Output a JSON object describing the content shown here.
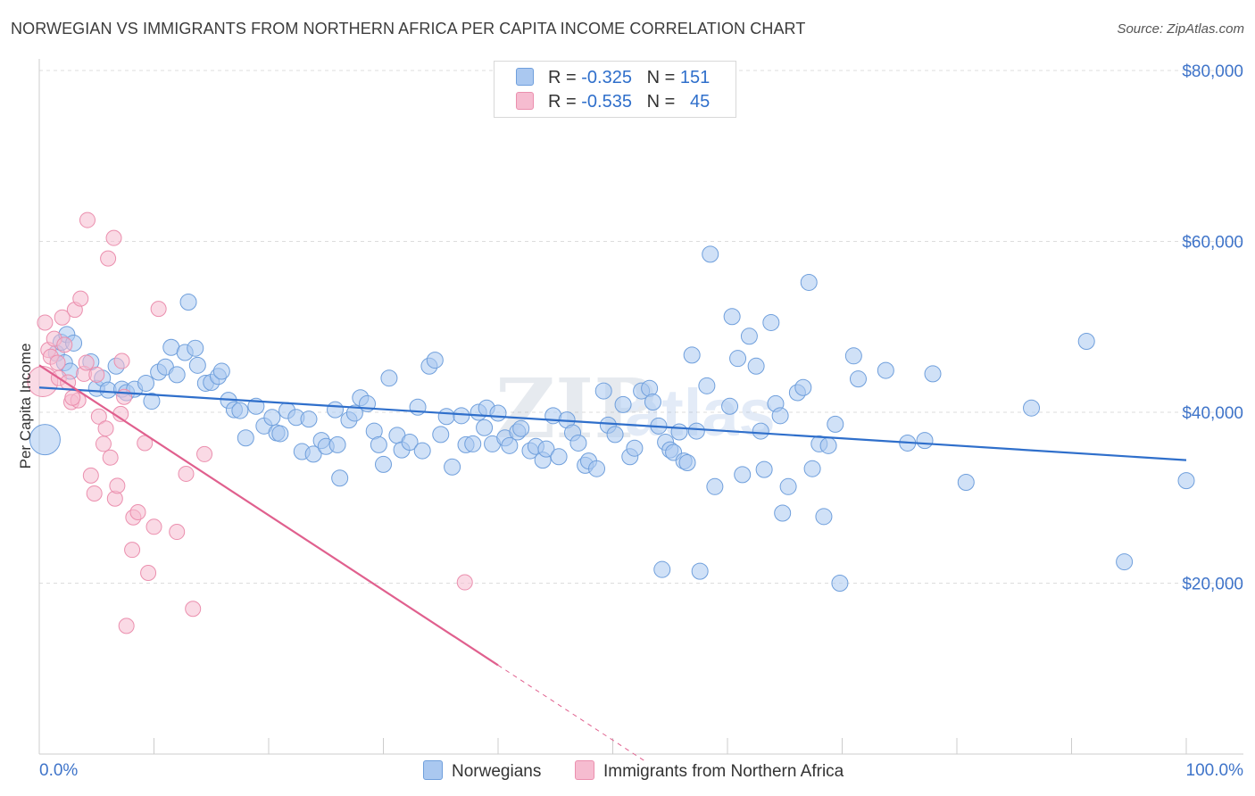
{
  "header": {
    "title": "NORWEGIAN VS IMMIGRANTS FROM NORTHERN AFRICA PER CAPITA INCOME CORRELATION CHART",
    "source": "Source: ZipAtlas.com"
  },
  "legend": {
    "r_label": "R =",
    "n_label": "N =",
    "rows": [
      {
        "r": "-0.325",
        "n": "151"
      },
      {
        "r": "-0.535",
        "n": "45"
      }
    ]
  },
  "watermark": {
    "zip": "ZIP",
    "atlas": "atlas"
  },
  "colors": {
    "blue_fill": "#aac8f0",
    "blue_stroke": "#6f9fdc",
    "blue_line": "#2f6fcb",
    "pink_fill": "#f6bcd0",
    "pink_stroke": "#eb8fae",
    "pink_line": "#e0608e",
    "axis_text": "#3f74c9",
    "grid": "#dddddd"
  },
  "chart_data": {
    "type": "scatter",
    "title": "NORWEGIAN VS IMMIGRANTS FROM NORTHERN AFRICA PER CAPITA INCOME CORRELATION CHART",
    "xlabel": "",
    "ylabel": "Per Capita Income",
    "xlim": [
      0,
      100
    ],
    "ylim": [
      0,
      80000
    ],
    "x_tick_labels": [
      "0.0%",
      "100.0%"
    ],
    "y_ticks": [
      20000,
      40000,
      60000,
      80000
    ],
    "y_tick_labels": [
      "$20,000",
      "$40,000",
      "$60,000",
      "$80,000"
    ],
    "grid": "horizontal dashed",
    "legend_position": "top-center and bottom",
    "series": [
      {
        "name": "Norwegians",
        "r": -0.325,
        "n": 151,
        "trend": {
          "x": [
            0,
            100
          ],
          "y": [
            42900,
            34400
          ]
        },
        "points": [
          [
            0.5,
            36800
          ],
          [
            1.5,
            46900
          ],
          [
            1.9,
            48200
          ],
          [
            2.2,
            45800
          ],
          [
            2.4,
            49100
          ],
          [
            3,
            48100
          ],
          [
            2.7,
            44800
          ],
          [
            4.5,
            45900
          ],
          [
            5,
            42800
          ],
          [
            5.5,
            44000
          ],
          [
            6,
            42600
          ],
          [
            6.7,
            45400
          ],
          [
            7.2,
            42700
          ],
          [
            7.6,
            42300
          ],
          [
            8.3,
            42700
          ],
          [
            9.3,
            43400
          ],
          [
            9.8,
            41300
          ],
          [
            10.4,
            44700
          ],
          [
            11,
            45300
          ],
          [
            11.5,
            47600
          ],
          [
            12,
            44400
          ],
          [
            12.7,
            47000
          ],
          [
            13,
            52900
          ],
          [
            13.6,
            47500
          ],
          [
            13.8,
            45500
          ],
          [
            14.5,
            43400
          ],
          [
            15,
            43500
          ],
          [
            15.6,
            44200
          ],
          [
            15.9,
            44800
          ],
          [
            16.5,
            41400
          ],
          [
            17,
            40300
          ],
          [
            17.5,
            40200
          ],
          [
            18,
            37000
          ],
          [
            18.9,
            40700
          ],
          [
            19.6,
            38400
          ],
          [
            20.3,
            39400
          ],
          [
            20.7,
            37600
          ],
          [
            21,
            37500
          ],
          [
            21.6,
            40200
          ],
          [
            22.4,
            39400
          ],
          [
            22.9,
            35400
          ],
          [
            23.5,
            39200
          ],
          [
            23.9,
            35100
          ],
          [
            24.6,
            36700
          ],
          [
            25,
            36000
          ],
          [
            26,
            36200
          ],
          [
            26.2,
            32300
          ],
          [
            25.8,
            40300
          ],
          [
            27,
            39100
          ],
          [
            27.5,
            39900
          ],
          [
            28,
            41700
          ],
          [
            28.6,
            41000
          ],
          [
            29.2,
            37800
          ],
          [
            29.6,
            36200
          ],
          [
            30,
            33900
          ],
          [
            30.5,
            44000
          ],
          [
            31.2,
            37300
          ],
          [
            31.6,
            35600
          ],
          [
            32.3,
            36500
          ],
          [
            33,
            40600
          ],
          [
            33.4,
            35500
          ],
          [
            34,
            45400
          ],
          [
            34.5,
            46100
          ],
          [
            35,
            37400
          ],
          [
            35.5,
            39500
          ],
          [
            36,
            33600
          ],
          [
            36.8,
            39600
          ],
          [
            37.2,
            36200
          ],
          [
            37.8,
            36300
          ],
          [
            38.3,
            40000
          ],
          [
            38.8,
            38200
          ],
          [
            39,
            40500
          ],
          [
            39.5,
            36300
          ],
          [
            40,
            39900
          ],
          [
            40.6,
            37000
          ],
          [
            41,
            36100
          ],
          [
            41.7,
            37700
          ],
          [
            42,
            38100
          ],
          [
            42.8,
            35500
          ],
          [
            43.3,
            36000
          ],
          [
            43.9,
            34400
          ],
          [
            44.2,
            35700
          ],
          [
            44.8,
            39600
          ],
          [
            45.3,
            34800
          ],
          [
            46,
            39100
          ],
          [
            46.5,
            37600
          ],
          [
            47,
            36400
          ],
          [
            47.6,
            33800
          ],
          [
            47.9,
            34300
          ],
          [
            48.6,
            33400
          ],
          [
            49.2,
            42500
          ],
          [
            49.6,
            38500
          ],
          [
            50.2,
            37400
          ],
          [
            50.9,
            40900
          ],
          [
            51.5,
            34800
          ],
          [
            51.9,
            35800
          ],
          [
            52.5,
            42500
          ],
          [
            53.2,
            42800
          ],
          [
            53.5,
            41200
          ],
          [
            54,
            38400
          ],
          [
            54.3,
            21600
          ],
          [
            54.6,
            36500
          ],
          [
            55,
            35600
          ],
          [
            55.3,
            35300
          ],
          [
            55.8,
            37700
          ],
          [
            56.2,
            34300
          ],
          [
            56.5,
            34100
          ],
          [
            56.9,
            46700
          ],
          [
            57.3,
            37800
          ],
          [
            57.6,
            21400
          ],
          [
            58.2,
            43100
          ],
          [
            58.5,
            58500
          ],
          [
            58.9,
            31300
          ],
          [
            60.2,
            40700
          ],
          [
            60.4,
            51200
          ],
          [
            60.9,
            46300
          ],
          [
            61.3,
            32700
          ],
          [
            61.9,
            48900
          ],
          [
            62.5,
            45400
          ],
          [
            62.9,
            37800
          ],
          [
            63.2,
            33300
          ],
          [
            63.8,
            50500
          ],
          [
            64.2,
            41000
          ],
          [
            64.8,
            28200
          ],
          [
            64.6,
            39600
          ],
          [
            65.3,
            31300
          ],
          [
            66.1,
            42300
          ],
          [
            66.6,
            42900
          ],
          [
            67.1,
            55200
          ],
          [
            67.4,
            33400
          ],
          [
            68,
            36300
          ],
          [
            68.4,
            27800
          ],
          [
            68.8,
            36100
          ],
          [
            69.4,
            38600
          ],
          [
            69.8,
            20000
          ],
          [
            71,
            46600
          ],
          [
            71.4,
            43900
          ],
          [
            73.8,
            44900
          ],
          [
            75.7,
            36400
          ],
          [
            77.2,
            36700
          ],
          [
            77.9,
            44500
          ],
          [
            80.8,
            31800
          ],
          [
            86.5,
            40500
          ],
          [
            91.3,
            48300
          ],
          [
            94.6,
            22500
          ],
          [
            100,
            32000
          ]
        ]
      },
      {
        "name": "Immigrants from Northern Africa",
        "r": -0.535,
        "n": 45,
        "trend": {
          "x": [
            0,
            40
          ],
          "y": [
            45500,
            10400
          ]
        },
        "trend_dashed_ext": {
          "x": [
            40,
            53
          ],
          "y": [
            10400,
            -1000
          ]
        },
        "points": [
          [
            0.3,
            43600
          ],
          [
            0.5,
            50500
          ],
          [
            0.8,
            47300
          ],
          [
            1,
            46500
          ],
          [
            1.3,
            48600
          ],
          [
            1.6,
            45800
          ],
          [
            1.7,
            44000
          ],
          [
            2,
            51100
          ],
          [
            2.2,
            47900
          ],
          [
            2.5,
            43500
          ],
          [
            2.8,
            41200
          ],
          [
            3.1,
            52000
          ],
          [
            3.4,
            41400
          ],
          [
            3.6,
            53300
          ],
          [
            3.9,
            44500
          ],
          [
            4.2,
            62500
          ],
          [
            4.5,
            32600
          ],
          [
            4.8,
            30500
          ],
          [
            5,
            44400
          ],
          [
            5.2,
            39500
          ],
          [
            5.6,
            36300
          ],
          [
            5.8,
            38100
          ],
          [
            6,
            58000
          ],
          [
            6.2,
            34700
          ],
          [
            6.6,
            29900
          ],
          [
            6.8,
            31400
          ],
          [
            7.1,
            39800
          ],
          [
            7.4,
            41800
          ],
          [
            7.6,
            15000
          ],
          [
            8.2,
            27700
          ],
          [
            8.6,
            28300
          ],
          [
            9.2,
            36400
          ],
          [
            9.5,
            21200
          ],
          [
            10,
            26600
          ],
          [
            10.4,
            52100
          ],
          [
            12,
            26000
          ],
          [
            12.8,
            32800
          ],
          [
            13.4,
            17000
          ],
          [
            14.4,
            35100
          ],
          [
            37.1,
            20100
          ],
          [
            6.5,
            60400
          ],
          [
            7.2,
            46000
          ],
          [
            2.9,
            41700
          ],
          [
            4.1,
            45800
          ],
          [
            8.1,
            23900
          ]
        ]
      }
    ]
  },
  "bottom_legend": {
    "items": [
      {
        "label": "Norwegians"
      },
      {
        "label": "Immigrants from Northern Africa"
      }
    ]
  }
}
